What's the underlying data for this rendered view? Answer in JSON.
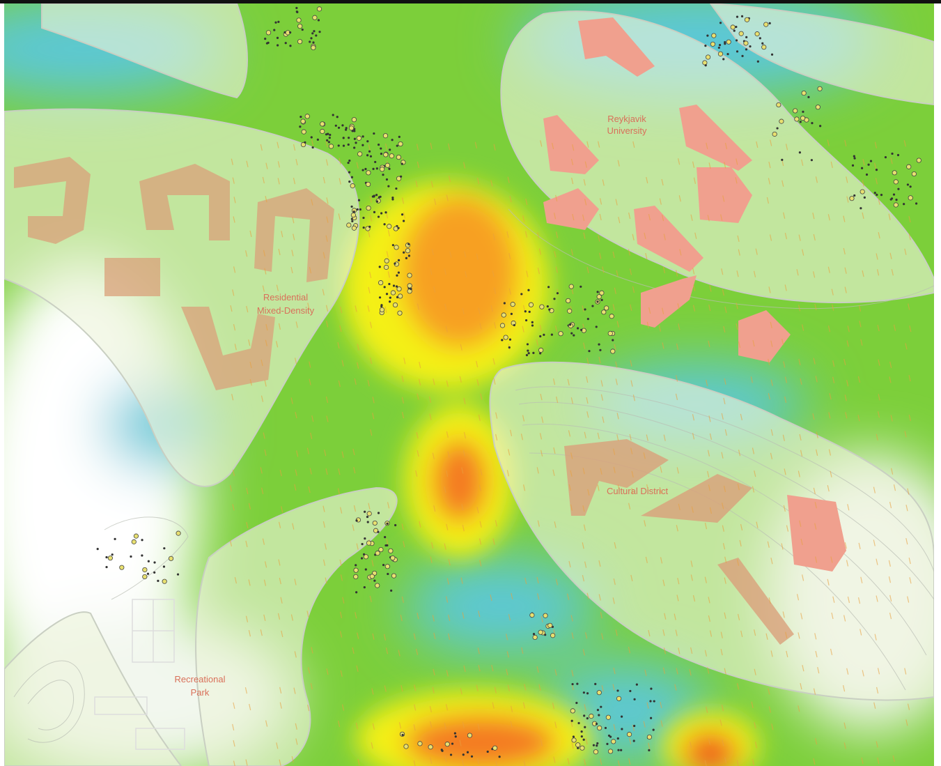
{
  "labels": [
    {
      "lines": [
        "Residential",
        "Mixed-Density"
      ]
    },
    {
      "lines": [
        "Reykjavik",
        "University"
      ]
    },
    {
      "lines": [
        "Cultural District"
      ]
    },
    {
      "lines": [
        "Recreational",
        "Park"
      ]
    }
  ]
}
